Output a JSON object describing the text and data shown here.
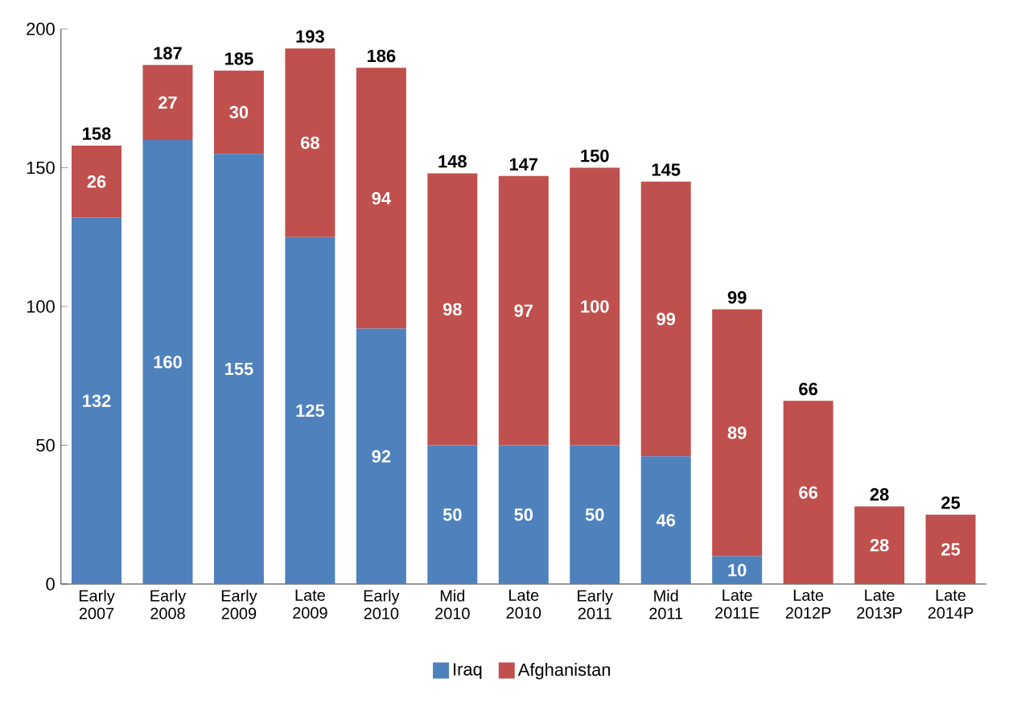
{
  "chart_data": {
    "type": "bar",
    "stacked": true,
    "categories": [
      "Early 2007",
      "Early 2008",
      "Early 2009",
      "Late 2009",
      "Early 2010",
      "Mid 2010",
      "Late 2010",
      "Early 2011",
      "Mid 2011",
      "Late 2011E",
      "Late 2012P",
      "Late 2013P",
      "Late 2014P"
    ],
    "series": [
      {
        "name": "Iraq",
        "color": "#4f81bd",
        "values": [
          132,
          160,
          155,
          125,
          92,
          50,
          50,
          50,
          46,
          10,
          null,
          null,
          null
        ]
      },
      {
        "name": "Afghanistan",
        "color": "#c0504d",
        "values": [
          26,
          27,
          30,
          68,
          94,
          98,
          97,
          100,
          99,
          89,
          66,
          28,
          25
        ]
      }
    ],
    "totals": [
      "158",
      "187",
      "185",
      "193",
      "186",
      "148",
      "147",
      "150",
      "145",
      "99",
      "66",
      "28",
      "25"
    ],
    "data_labels": true,
    "ylim": [
      0,
      200
    ],
    "yticks": [
      0,
      50,
      100,
      150,
      200
    ],
    "grid": false,
    "legend": "bottom"
  }
}
